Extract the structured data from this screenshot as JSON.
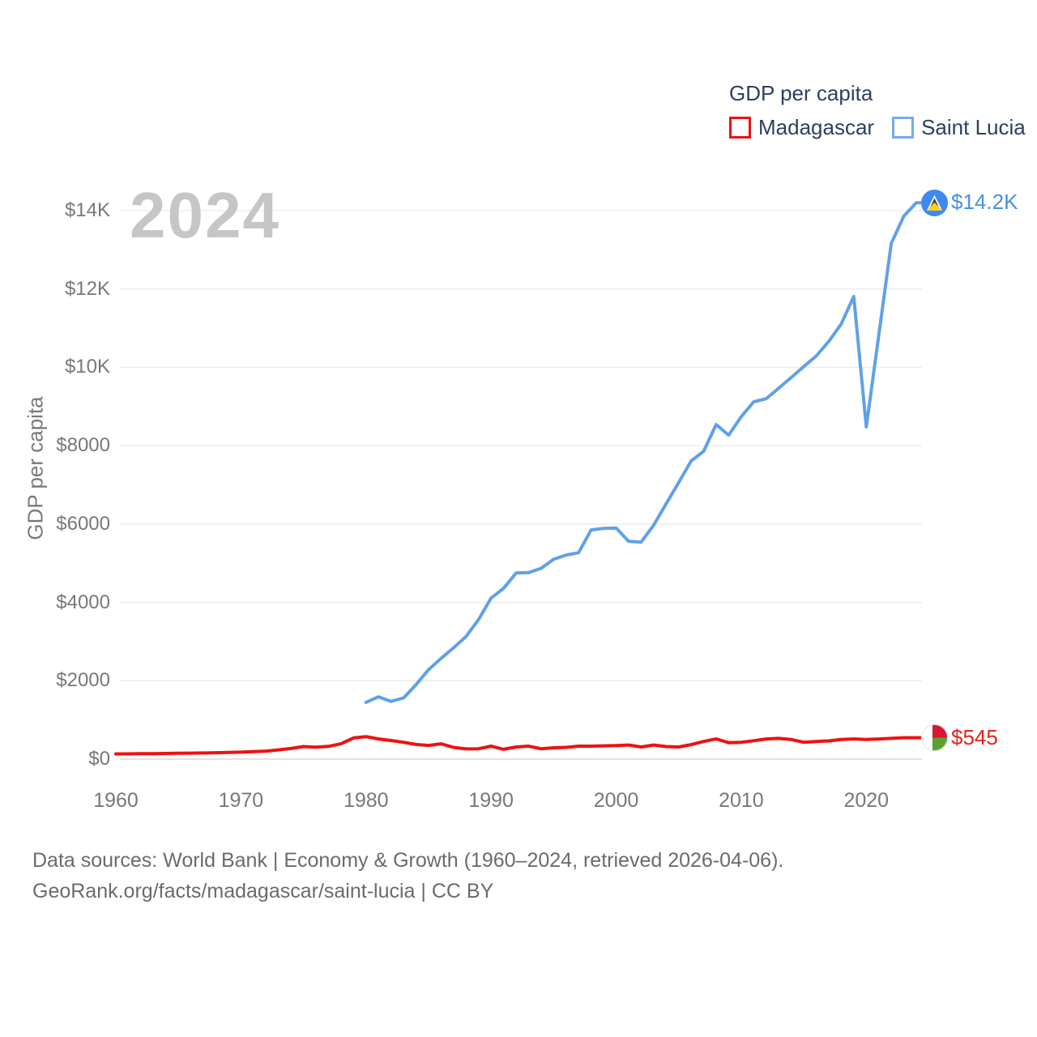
{
  "legend": {
    "title": "GDP per capita",
    "items": [
      {
        "label": "Madagascar",
        "swatch_color": "#ee1111"
      },
      {
        "label": "Saint Lucia",
        "swatch_color": "#74abe9"
      }
    ]
  },
  "watermark": "2024",
  "end_labels": {
    "madagascar": "$545",
    "saint_lucia": "$14.2K"
  },
  "footer": {
    "line1": "Data sources: World Bank | Economy & Growth (1960–2024, retrieved 2026-04-06).",
    "line2": "GeoRank.org/facts/madagascar/saint-lucia | CC BY"
  },
  "chart_data": {
    "type": "line",
    "title": "GDP per capita",
    "xlabel": "",
    "ylabel": "GDP per capita",
    "xlim": [
      1960,
      2024
    ],
    "ylim": [
      0,
      14500
    ],
    "grid": true,
    "legend_position": "top-right",
    "x_ticks": [
      "1960",
      "1970",
      "1980",
      "1990",
      "2000",
      "2010",
      "2020"
    ],
    "y_ticks": [
      {
        "value": 0,
        "label": "$0"
      },
      {
        "value": 2000,
        "label": "$2000"
      },
      {
        "value": 4000,
        "label": "$4000"
      },
      {
        "value": 6000,
        "label": "$6000"
      },
      {
        "value": 8000,
        "label": "$8000"
      },
      {
        "value": 10000,
        "label": "$10K"
      },
      {
        "value": 12000,
        "label": "$12K"
      },
      {
        "value": 14000,
        "label": "$14K"
      }
    ],
    "series": [
      {
        "name": "Madagascar",
        "color": "#ee1111",
        "label_color": "#e8221a",
        "start_year": 1960,
        "end_value_label": "$545",
        "values": [
          132,
          135,
          138,
          141,
          144,
          148,
          153,
          158,
          164,
          170,
          178,
          190,
          205,
          235,
          270,
          320,
          305,
          325,
          390,
          540,
          575,
          515,
          475,
          430,
          375,
          350,
          390,
          300,
          260,
          265,
          330,
          250,
          310,
          330,
          265,
          290,
          300,
          330,
          330,
          340,
          345,
          360,
          310,
          360,
          320,
          310,
          370,
          450,
          515,
          420,
          430,
          470,
          515,
          530,
          500,
          430,
          450,
          465,
          500,
          515,
          500,
          515,
          530,
          545,
          545
        ]
      },
      {
        "name": "Saint Lucia",
        "color": "#60a1e6",
        "label_color": "#4a90e2",
        "start_year": 1980,
        "end_value_label": "$14.2K",
        "values": [
          1450,
          1590,
          1475,
          1560,
          1900,
          2280,
          2570,
          2840,
          3130,
          3560,
          4110,
          4360,
          4750,
          4760,
          4870,
          5100,
          5210,
          5270,
          5850,
          5890,
          5900,
          5560,
          5540,
          5970,
          6520,
          7060,
          7610,
          7860,
          8540,
          8270,
          8740,
          9120,
          9200,
          9470,
          9740,
          10020,
          10290,
          10660,
          11110,
          11810,
          8480,
          10820,
          13160,
          13860,
          14200
        ]
      }
    ]
  }
}
